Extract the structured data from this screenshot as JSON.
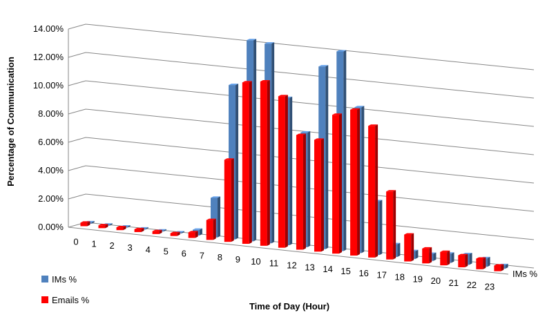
{
  "chart_data": {
    "type": "bar",
    "subtype": "3d-clustered-column",
    "xlabel": "Time of Day (Hour)",
    "ylabel": "Percentage of Communication",
    "depth_label": "IMs %",
    "ylim": [
      0,
      14
    ],
    "y_ticks": [
      "0.00%",
      "2.00%",
      "4.00%",
      "6.00%",
      "8.00%",
      "10.00%",
      "12.00%",
      "14.00%"
    ],
    "categories": [
      "0",
      "1",
      "2",
      "3",
      "4",
      "5",
      "6",
      "7",
      "8",
      "9",
      "10",
      "11",
      "12",
      "13",
      "14",
      "15",
      "16",
      "17",
      "18",
      "19",
      "20",
      "21",
      "22",
      "23"
    ],
    "grid": true,
    "legend_position": "bottom-left",
    "series": [
      {
        "name": "IMs %",
        "color": "#4F81BD",
        "values": [
          0.1,
          0.05,
          0.05,
          0.05,
          0.05,
          0.05,
          0.4,
          2.8,
          10.9,
          14.2,
          14.1,
          10.4,
          8.1,
          12.9,
          14.1,
          10.3,
          3.8,
          0.9,
          0.55,
          0.5,
          0.65,
          0.75,
          0.6,
          0.25
        ]
      },
      {
        "name": "Emails %",
        "color": "#FF0000",
        "values": [
          0.25,
          0.2,
          0.2,
          0.2,
          0.2,
          0.2,
          0.4,
          1.4,
          5.8,
          11.4,
          11.6,
          10.7,
          8.1,
          7.9,
          9.8,
          10.3,
          9.3,
          4.8,
          1.9,
          1.05,
          0.95,
          0.85,
          0.75,
          0.4
        ]
      }
    ]
  }
}
